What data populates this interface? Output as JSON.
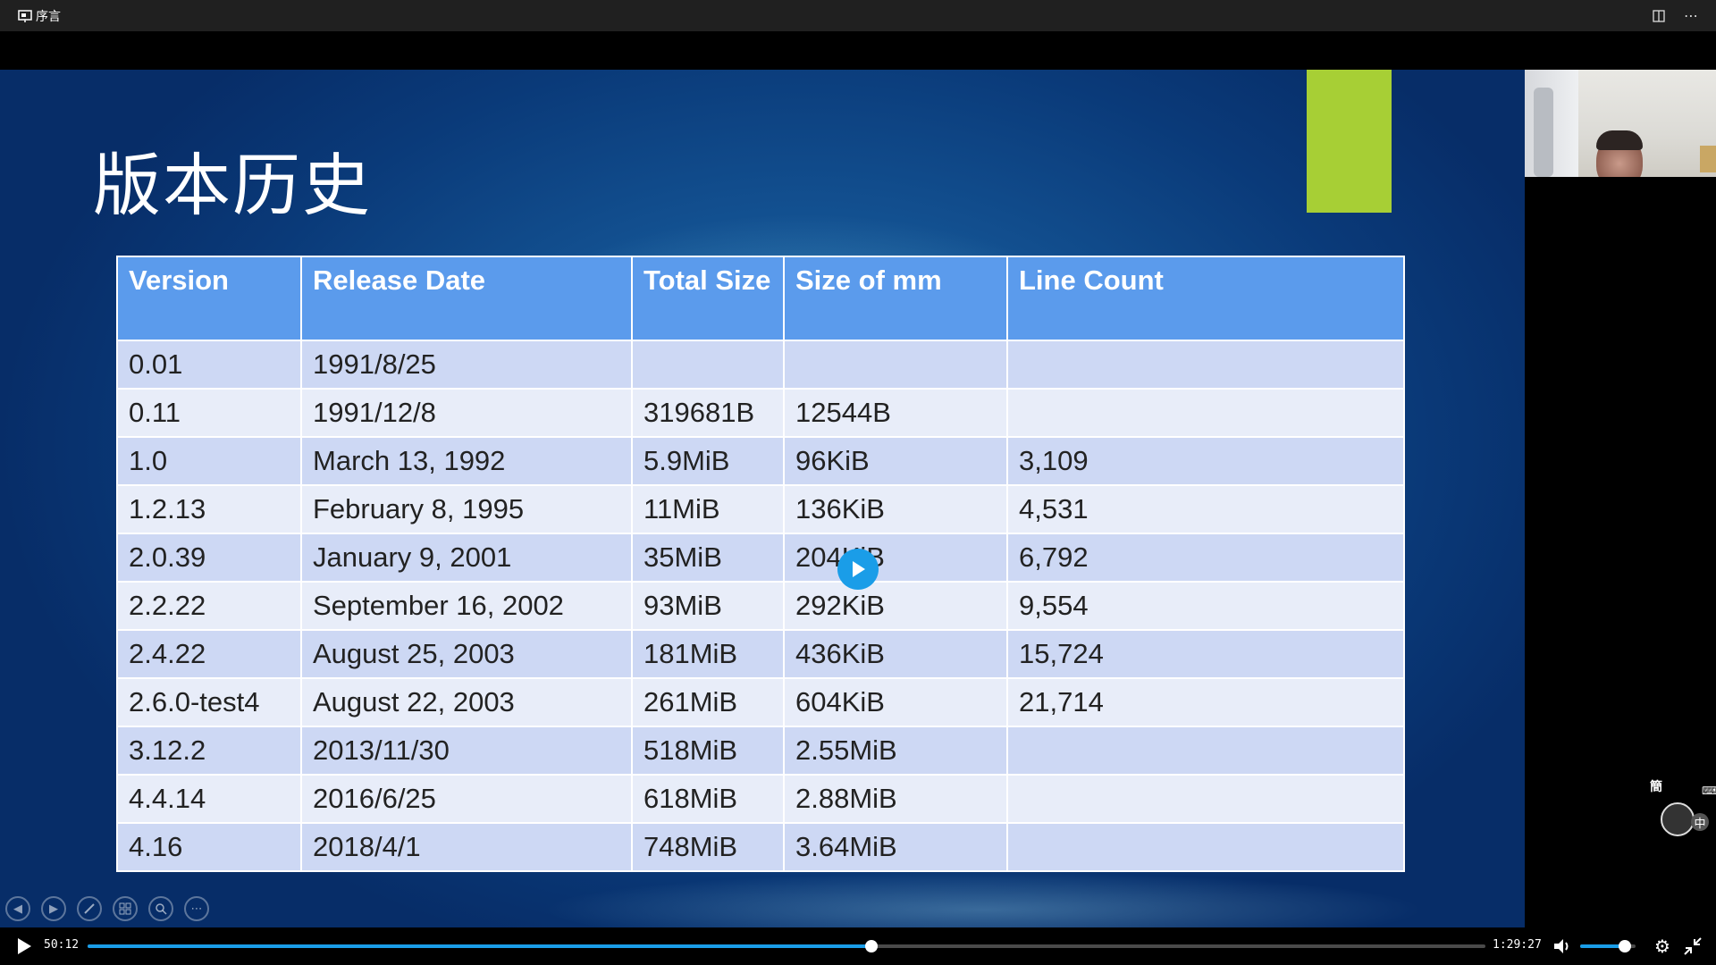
{
  "window": {
    "title": "序言",
    "icons": {
      "app": "slides-app-icon",
      "split": "split-view-icon",
      "more": "more-icon"
    }
  },
  "slide": {
    "title": "版本历史",
    "accent_color": "#a7cf35",
    "table": {
      "headers": [
        "Version",
        "Release Date",
        "Total Size",
        "Size of mm",
        "Line Count"
      ],
      "rows": [
        [
          "0.01",
          "1991/8/25",
          "",
          "",
          ""
        ],
        [
          "0.11",
          "1991/12/8",
          "319681B",
          "12544B",
          ""
        ],
        [
          "1.0",
          "March 13, 1992",
          "5.9MiB",
          "96KiB",
          "3,109"
        ],
        [
          "1.2.13",
          "February 8, 1995",
          "11MiB",
          "136KiB",
          "4,531"
        ],
        [
          "2.0.39",
          "January 9, 2001",
          "35MiB",
          "204KiB",
          "6,792"
        ],
        [
          "2.2.22",
          "September 16, 2002",
          "93MiB",
          "292KiB",
          "9,554"
        ],
        [
          "2.4.22",
          "August 25, 2003",
          "181MiB",
          "436KiB",
          "15,724"
        ],
        [
          "2.6.0-test4",
          "August 22, 2003",
          "261MiB",
          "604KiB",
          "21,714"
        ],
        [
          "3.12.2",
          "2013/11/30",
          "518MiB",
          "2.55MiB",
          ""
        ],
        [
          "4.4.14",
          "2016/6/25",
          "618MiB",
          "2.88MiB",
          ""
        ],
        [
          "4.16",
          "2018/4/1",
          "748MiB",
          "3.64MiB",
          ""
        ]
      ]
    },
    "nav_icons": [
      "previous-slide-icon",
      "next-slide-icon",
      "pen-icon",
      "slides-grid-icon",
      "zoom-icon",
      "more-options-icon"
    ]
  },
  "ime": {
    "char_top": "簡",
    "char_mode": "中"
  },
  "player": {
    "current_time": "50:12",
    "total_time": "1:29:27",
    "progress_fraction": 0.561,
    "volume_fraction": 0.8,
    "accent_color": "#1a9de8"
  }
}
